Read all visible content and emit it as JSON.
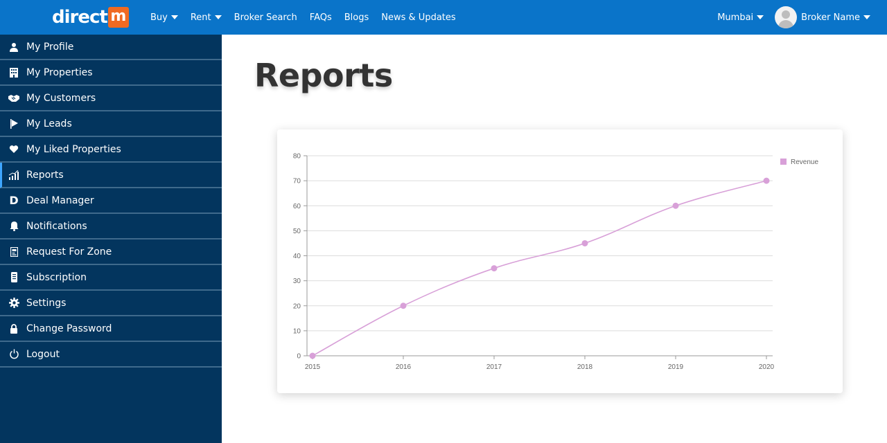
{
  "header": {
    "logo_text": "direct",
    "logo_badge": "m",
    "nav": [
      {
        "label": "Buy",
        "dropdown": true
      },
      {
        "label": "Rent",
        "dropdown": true
      },
      {
        "label": "Broker Search",
        "dropdown": false
      },
      {
        "label": "FAQs",
        "dropdown": false
      },
      {
        "label": "Blogs",
        "dropdown": false
      },
      {
        "label": "News & Updates",
        "dropdown": false
      }
    ],
    "city": "Mumbai",
    "user_name": "Broker Name"
  },
  "sidebar": {
    "items": [
      {
        "label": "My Profile",
        "icon": "user-icon"
      },
      {
        "label": "My Properties",
        "icon": "building-icon"
      },
      {
        "label": "My Customers",
        "icon": "handshake-icon"
      },
      {
        "label": "My Leads",
        "icon": "flag-icon"
      },
      {
        "label": "My Liked Properties",
        "icon": "heart-icon"
      },
      {
        "label": "Reports",
        "icon": "bar-chart-icon",
        "active": true
      },
      {
        "label": "Deal Manager",
        "icon": "deal-d-icon"
      },
      {
        "label": "Notifications",
        "icon": "bell-icon"
      },
      {
        "label": "Request For Zone",
        "icon": "document-icon"
      },
      {
        "label": "Subscription",
        "icon": "receipt-icon"
      },
      {
        "label": "Settings",
        "icon": "gear-icon"
      },
      {
        "label": "Change Password",
        "icon": "lock-icon"
      },
      {
        "label": "Logout",
        "icon": "power-icon"
      }
    ]
  },
  "main": {
    "title": "Reports"
  },
  "colors": {
    "topbar": "#0a74c9",
    "sidebar": "#03355e",
    "series": "#d8a0d8",
    "logo_badge": "#f06a22"
  },
  "chart_data": {
    "type": "line",
    "x": [
      "2015",
      "2016",
      "2017",
      "2018",
      "2019",
      "2020"
    ],
    "series": [
      {
        "name": "Revenue",
        "values": [
          0,
          20,
          35,
          45,
          60,
          70
        ]
      }
    ],
    "ylim": [
      0,
      80
    ],
    "yticks": [
      0,
      10,
      20,
      30,
      40,
      50,
      60,
      70,
      80
    ],
    "grid": true,
    "legend": "top-right",
    "smooth": true
  }
}
